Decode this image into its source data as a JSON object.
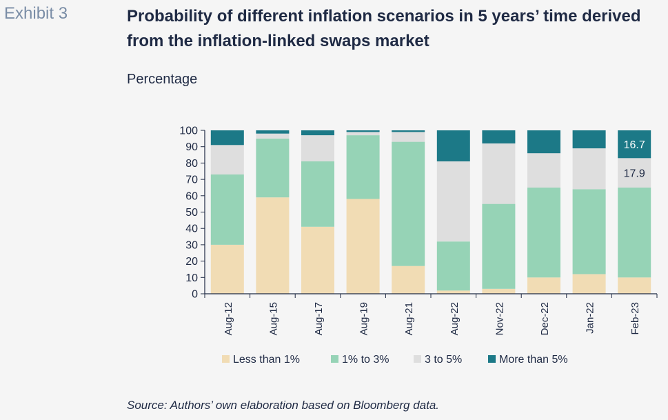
{
  "header": {
    "exhibit": "Exhibit 3",
    "title": "Probability of different inflation scenarios in 5 years’ time derived from the inflation-linked swaps market",
    "subtitle": "Percentage"
  },
  "footer": {
    "source": "Source: Authors’ own elaboration based on Bloomberg data."
  },
  "colors": {
    "less_than_1": "#f1dcb4",
    "one_to_3": "#96d3b6",
    "three_to_5": "#dedede",
    "more_than_5": "#1c7987",
    "axis": "#1f2a44"
  },
  "chart_data": {
    "type": "bar",
    "stacked": true,
    "categories": [
      "Aug-12",
      "Aug-15",
      "Aug-17",
      "Aug-19",
      "Aug-21",
      "Aug-22",
      "Nov-22",
      "Dec-22",
      "Jan-22",
      "Feb-23"
    ],
    "series": [
      {
        "name": "Less than 1%",
        "values": [
          30,
          59,
          41,
          58,
          17,
          2,
          3,
          10,
          12,
          10
        ]
      },
      {
        "name": "1% to 3%",
        "values": [
          43,
          36,
          40,
          39,
          76,
          30,
          52,
          55,
          52,
          55
        ]
      },
      {
        "name": "3 to 5%",
        "values": [
          18,
          3,
          16,
          2,
          6,
          49,
          37,
          21,
          25,
          18
        ]
      },
      {
        "name": "More than 5%",
        "values": [
          9,
          2,
          3,
          1,
          1,
          19,
          8,
          14,
          11,
          17
        ]
      }
    ],
    "data_labels": [
      {
        "category": "Feb-23",
        "series": "More than 5%",
        "text": "16.7"
      },
      {
        "category": "Feb-23",
        "series": "3 to 5%",
        "text": "17.9"
      }
    ],
    "ylim": [
      0,
      100
    ],
    "yticks": [
      0,
      10,
      20,
      30,
      40,
      50,
      60,
      70,
      80,
      90,
      100
    ],
    "legend_position": "bottom",
    "grid": false
  }
}
